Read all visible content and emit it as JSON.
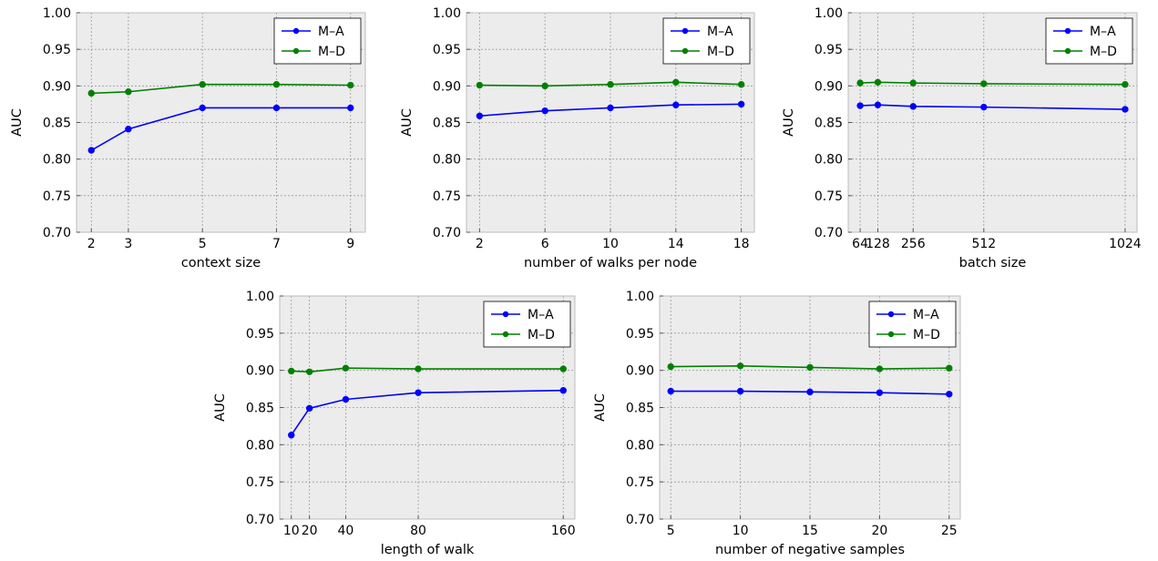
{
  "chart_data": [
    {
      "type": "line",
      "xlabel": "context size",
      "ylabel": "AUC",
      "x": [
        2,
        3,
        5,
        7,
        9
      ],
      "xticks": [
        "2",
        "3",
        "5",
        "7",
        "9"
      ],
      "xlim": [
        1.6,
        9.4
      ],
      "ylim": [
        0.7,
        1.0
      ],
      "yticks": [
        "0.70",
        "0.75",
        "0.80",
        "0.85",
        "0.90",
        "0.95",
        "1.00"
      ],
      "grid": true,
      "legend": "top-right",
      "series": [
        {
          "name": "M–A",
          "color": "#0000ff",
          "values": [
            0.812,
            0.841,
            0.87,
            0.87,
            0.87
          ]
        },
        {
          "name": "M–D",
          "color": "#008000",
          "values": [
            0.89,
            0.892,
            0.902,
            0.902,
            0.901
          ]
        }
      ]
    },
    {
      "type": "line",
      "xlabel": "number of walks per node",
      "ylabel": "AUC",
      "x": [
        2,
        6,
        10,
        14,
        18
      ],
      "xticks": [
        "2",
        "6",
        "10",
        "14",
        "18"
      ],
      "xlim": [
        1.2,
        18.8
      ],
      "ylim": [
        0.7,
        1.0
      ],
      "yticks": [
        "0.70",
        "0.75",
        "0.80",
        "0.85",
        "0.90",
        "0.95",
        "1.00"
      ],
      "grid": true,
      "legend": "top-right",
      "series": [
        {
          "name": "M–A",
          "color": "#0000ff",
          "values": [
            0.859,
            0.866,
            0.87,
            0.874,
            0.875
          ]
        },
        {
          "name": "M–D",
          "color": "#008000",
          "values": [
            0.901,
            0.9,
            0.902,
            0.905,
            0.902
          ]
        }
      ]
    },
    {
      "type": "line",
      "xlabel": "batch size",
      "ylabel": "AUC",
      "x": [
        64,
        128,
        256,
        512,
        1024
      ],
      "xticks": [
        "64",
        "128",
        "256",
        "512",
        "1024"
      ],
      "xlim": [
        20.8,
        1067.2
      ],
      "ylim": [
        0.7,
        1.0
      ],
      "yticks": [
        "0.70",
        "0.75",
        "0.80",
        "0.85",
        "0.90",
        "0.95",
        "1.00"
      ],
      "grid": true,
      "legend": "top-right",
      "series": [
        {
          "name": "M–A",
          "color": "#0000ff",
          "values": [
            0.873,
            0.874,
            0.872,
            0.871,
            0.868
          ]
        },
        {
          "name": "M–D",
          "color": "#008000",
          "values": [
            0.904,
            0.905,
            0.904,
            0.903,
            0.902
          ]
        }
      ]
    },
    {
      "type": "line",
      "xlabel": "length of walk",
      "ylabel": "AUC",
      "x": [
        10,
        20,
        40,
        80,
        160
      ],
      "xticks": [
        "10",
        "20",
        "40",
        "80",
        "160"
      ],
      "xlim": [
        3.6,
        166.4
      ],
      "ylim": [
        0.7,
        1.0
      ],
      "yticks": [
        "0.70",
        "0.75",
        "0.80",
        "0.85",
        "0.90",
        "0.95",
        "1.00"
      ],
      "grid": true,
      "legend": "top-right",
      "series": [
        {
          "name": "M–A",
          "color": "#0000ff",
          "values": [
            0.813,
            0.849,
            0.861,
            0.87,
            0.873
          ]
        },
        {
          "name": "M–D",
          "color": "#008000",
          "values": [
            0.899,
            0.898,
            0.903,
            0.902,
            0.902
          ]
        }
      ]
    },
    {
      "type": "line",
      "xlabel": "number of negative samples",
      "ylabel": "AUC",
      "x": [
        5,
        10,
        15,
        20,
        25
      ],
      "xticks": [
        "5",
        "10",
        "15",
        "20",
        "25"
      ],
      "xlim": [
        4.2,
        25.8
      ],
      "ylim": [
        0.7,
        1.0
      ],
      "yticks": [
        "0.70",
        "0.75",
        "0.80",
        "0.85",
        "0.90",
        "0.95",
        "1.00"
      ],
      "grid": true,
      "legend": "top-right",
      "series": [
        {
          "name": "M–A",
          "color": "#0000ff",
          "values": [
            0.872,
            0.872,
            0.871,
            0.87,
            0.868
          ]
        },
        {
          "name": "M–D",
          "color": "#008000",
          "values": [
            0.905,
            0.906,
            0.904,
            0.902,
            0.903
          ]
        }
      ]
    }
  ]
}
